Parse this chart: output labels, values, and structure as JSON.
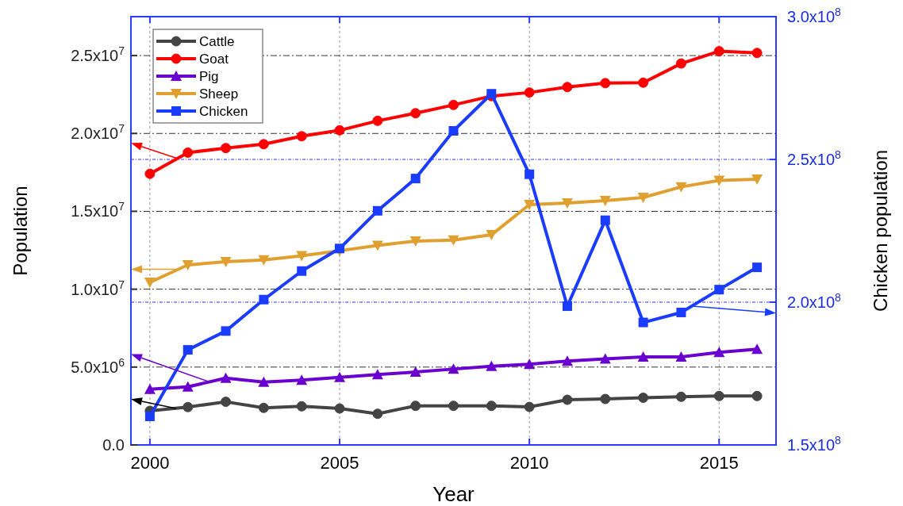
{
  "chart_data": {
    "type": "line",
    "xlabel": "Year",
    "ylabel": "Population",
    "y2label": "Chicken population",
    "x": [
      2000,
      2001,
      2002,
      2003,
      2004,
      2005,
      2006,
      2007,
      2008,
      2009,
      2010,
      2011,
      2012,
      2013,
      2014,
      2015,
      2016
    ],
    "series": [
      {
        "name": "Cattle",
        "color": "#444444",
        "marker": "circle",
        "values": [
          2190000,
          2430000,
          2770000,
          2380000,
          2480000,
          2340000,
          2000000,
          2510000,
          2510000,
          2510000,
          2440000,
          2900000,
          2950000,
          3030000,
          3090000,
          3140000,
          3140000
        ]
      },
      {
        "name": "Goat",
        "color": "#ff0000",
        "marker": "circle",
        "values": [
          17410000,
          18770000,
          19060000,
          19310000,
          19820000,
          20200000,
          20810000,
          21300000,
          21830000,
          22400000,
          22630000,
          22980000,
          23230000,
          23260000,
          24490000,
          25280000,
          25170000
        ]
      },
      {
        "name": "Pig",
        "color": "#6a00d0",
        "marker": "triangle",
        "values": [
          3580000,
          3730000,
          4290000,
          4040000,
          4160000,
          4340000,
          4520000,
          4680000,
          4870000,
          5050000,
          5180000,
          5390000,
          5530000,
          5650000,
          5650000,
          5950000,
          6150000
        ]
      },
      {
        "name": "Sheep",
        "color": "#e0a030",
        "marker": "triangle-down",
        "values": [
          10440000,
          11560000,
          11760000,
          11880000,
          12150000,
          12470000,
          12810000,
          13090000,
          13150000,
          13490000,
          15430000,
          15530000,
          15690000,
          15890000,
          16570000,
          16980000,
          17060000
        ]
      },
      {
        "name": "Chicken",
        "color": "#1a3cff",
        "marker": "square",
        "axis": "y2",
        "values": [
          160000000,
          183300000,
          189900000,
          200900000,
          210900000,
          218800000,
          232000000,
          243300000,
          260000000,
          273000000,
          244800000,
          198600000,
          228700000,
          192900000,
          196400000,
          204400000,
          212200000
        ]
      }
    ],
    "xlim": [
      1999.5,
      2016.5
    ],
    "xticks": [
      2000,
      2005,
      2010,
      2015
    ],
    "ylim": [
      0,
      27500000
    ],
    "yticks": [
      {
        "value": 0,
        "label": "0.0"
      },
      {
        "value": 5000000,
        "label": "5.0x10$^{6}$"
      },
      {
        "value": 10000000,
        "label": "1.0x10$^{7}$"
      },
      {
        "value": 15000000,
        "label": "1.5x10$^{7}$"
      },
      {
        "value": 20000000,
        "label": "2.0x10$^{7}$"
      },
      {
        "value": 25000000,
        "label": "2.5x10$^{7}$"
      }
    ],
    "y2lim": [
      150000000,
      300000000
    ],
    "y2ticks": [
      {
        "value": 150000000,
        "label": "1.5x10$^{8}$"
      },
      {
        "value": 200000000,
        "label": "2.0x10$^{8}$"
      },
      {
        "value": 250000000,
        "label": "2.5x10$^{8}$"
      },
      {
        "value": 300000000,
        "label": "3.0x10$^{8}$"
      }
    ],
    "grid": true,
    "legend": "top left",
    "line_style": "solid"
  }
}
